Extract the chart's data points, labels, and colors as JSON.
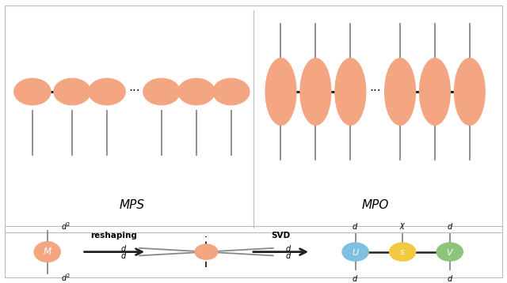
{
  "bg_color": "#ffffff",
  "border_color": "#bbbbbb",
  "node_color_salmon": "#F4A582",
  "node_color_blue": "#7FBFDF",
  "node_color_yellow": "#F5C842",
  "node_color_green": "#8CC47A",
  "line_color_dark": "#222222",
  "line_color_gray": "#888888",
  "mps_label": "MPS",
  "mpo_label": "MPO",
  "reshaping_label": "reshaping",
  "svd_label": "SVD"
}
